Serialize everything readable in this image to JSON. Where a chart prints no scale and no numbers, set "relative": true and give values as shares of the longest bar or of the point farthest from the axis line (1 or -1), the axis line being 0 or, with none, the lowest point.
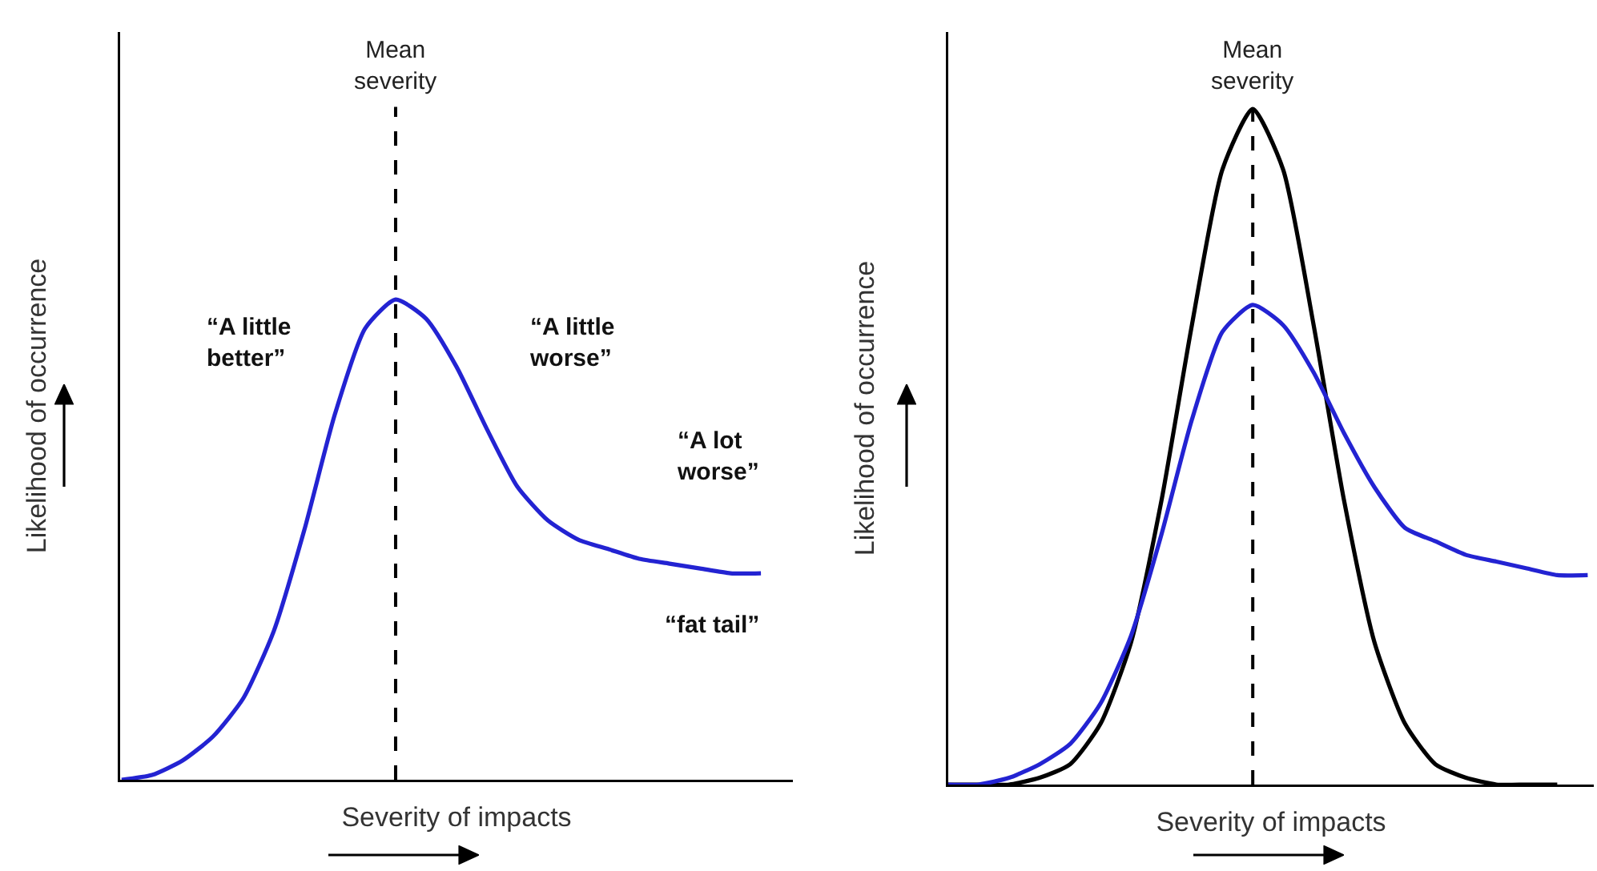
{
  "chart_data": [
    {
      "type": "line",
      "xlabel": "Severity of impacts",
      "ylabel": "Likelihood of occurrence",
      "relative": true,
      "categories": [
        null,
        null,
        null,
        null,
        null,
        null,
        null,
        null,
        null,
        null,
        null,
        null,
        null,
        null,
        null,
        null,
        null,
        null,
        null,
        null,
        null,
        null
      ],
      "series": [
        {
          "color": "#2323d2",
          "values": [
            0.0,
            0.01,
            0.04,
            0.09,
            0.17,
            0.31,
            0.52,
            0.76,
            0.94,
            1,
            0.96,
            0.86,
            0.73,
            0.61,
            0.54,
            0.5,
            0.48,
            0.46,
            0.45,
            0.44,
            0.43,
            0.43
          ]
        }
      ],
      "annotations": [
        "Mean\nseverity",
        "“A little\nbetter”",
        "“A little\nworse”",
        "“A lot\nworse”",
        "“fat tail”"
      ]
    },
    {
      "type": "line",
      "xlabel": "Severity of impacts",
      "ylabel": "Likelihood of occurrence",
      "relative": true,
      "categories": [
        null,
        null,
        null,
        null,
        null,
        null,
        null,
        null,
        null,
        null,
        null,
        null,
        null,
        null,
        null,
        null,
        null,
        null,
        null,
        null,
        null,
        null
      ],
      "series": [
        {
          "color": "#000000",
          "values": [
            0,
            0,
            0,
            0.01,
            0.03,
            0.09,
            0.21,
            0.42,
            0.68,
            0.91,
            1,
            0.91,
            0.68,
            0.42,
            0.21,
            0.09,
            0.03,
            0.01,
            0,
            0,
            0,
            null
          ]
        },
        {
          "color": "#2323d2",
          "values": [
            0,
            0,
            0.01,
            0.03,
            0.06,
            0.12,
            0.22,
            0.37,
            0.54,
            0.67,
            0.71,
            0.68,
            0.61,
            0.52,
            0.44,
            0.38,
            0.36,
            0.34,
            0.33,
            0.32,
            0.31,
            0.31
          ]
        }
      ],
      "annotations": [
        "Mean\nseverity"
      ]
    }
  ]
}
